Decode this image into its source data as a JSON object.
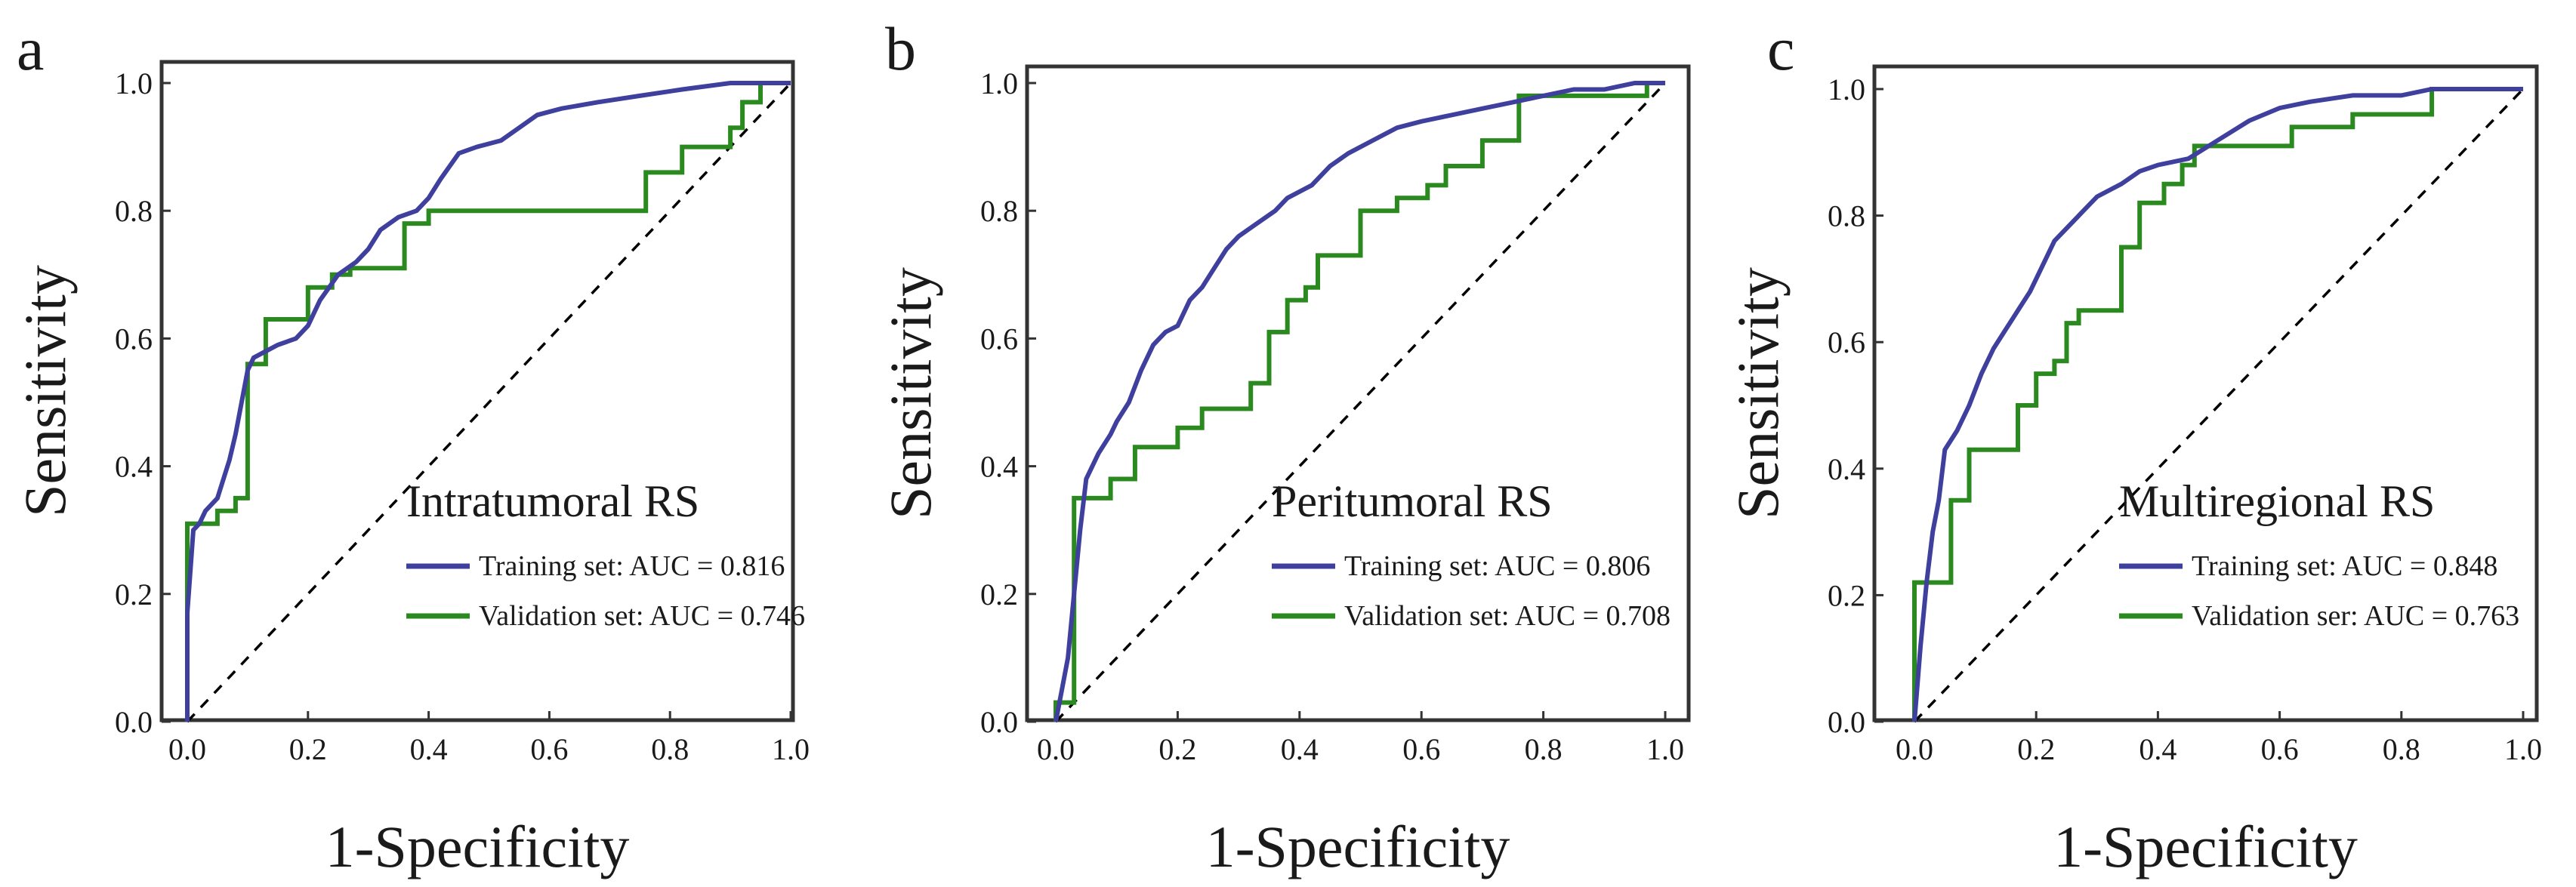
{
  "colors": {
    "training": "#3f3f9e",
    "validation": "#2b8a1f",
    "diagonal": "#000000",
    "frame": "#333333"
  },
  "chart_data": [
    {
      "panel_label": "a",
      "type": "line",
      "title": "Intratumoral RS",
      "xlabel": "1-Specificity",
      "ylabel": "Sensitivity",
      "xlim": [
        0,
        1
      ],
      "ylim": [
        0,
        1
      ],
      "x_ticks": [
        "0.0",
        "0.2",
        "0.4",
        "0.6",
        "0.8",
        "1.0"
      ],
      "y_ticks": [
        "0.0",
        "0.2",
        "0.4",
        "0.6",
        "0.8",
        "1.0"
      ],
      "grid": false,
      "legend_position": "bottom-right",
      "series": [
        {
          "name": "Training set: AUC = 0.816",
          "color_key": "training",
          "points": [
            [
              0,
              0
            ],
            [
              0,
              0.17
            ],
            [
              0.01,
              0.3
            ],
            [
              0.02,
              0.31
            ],
            [
              0.03,
              0.33
            ],
            [
              0.05,
              0.35
            ],
            [
              0.06,
              0.38
            ],
            [
              0.07,
              0.41
            ],
            [
              0.08,
              0.45
            ],
            [
              0.09,
              0.5
            ],
            [
              0.1,
              0.55
            ],
            [
              0.11,
              0.57
            ],
            [
              0.13,
              0.58
            ],
            [
              0.15,
              0.59
            ],
            [
              0.18,
              0.6
            ],
            [
              0.2,
              0.62
            ],
            [
              0.22,
              0.66
            ],
            [
              0.25,
              0.7
            ],
            [
              0.28,
              0.72
            ],
            [
              0.3,
              0.74
            ],
            [
              0.32,
              0.77
            ],
            [
              0.35,
              0.79
            ],
            [
              0.38,
              0.8
            ],
            [
              0.4,
              0.82
            ],
            [
              0.42,
              0.85
            ],
            [
              0.45,
              0.89
            ],
            [
              0.48,
              0.9
            ],
            [
              0.52,
              0.91
            ],
            [
              0.55,
              0.93
            ],
            [
              0.58,
              0.95
            ],
            [
              0.62,
              0.96
            ],
            [
              0.68,
              0.97
            ],
            [
              0.75,
              0.98
            ],
            [
              0.82,
              0.99
            ],
            [
              0.9,
              1.0
            ],
            [
              1.0,
              1.0
            ]
          ]
        },
        {
          "name": "Validation set: AUC = 0.746",
          "color_key": "validation",
          "points": [
            [
              0,
              0
            ],
            [
              0,
              0.31
            ],
            [
              0.05,
              0.31
            ],
            [
              0.05,
              0.33
            ],
            [
              0.08,
              0.33
            ],
            [
              0.08,
              0.35
            ],
            [
              0.1,
              0.35
            ],
            [
              0.1,
              0.56
            ],
            [
              0.13,
              0.56
            ],
            [
              0.13,
              0.63
            ],
            [
              0.2,
              0.63
            ],
            [
              0.2,
              0.68
            ],
            [
              0.24,
              0.68
            ],
            [
              0.24,
              0.7
            ],
            [
              0.27,
              0.7
            ],
            [
              0.27,
              0.71
            ],
            [
              0.36,
              0.71
            ],
            [
              0.36,
              0.78
            ],
            [
              0.4,
              0.78
            ],
            [
              0.4,
              0.8
            ],
            [
              0.76,
              0.8
            ],
            [
              0.76,
              0.86
            ],
            [
              0.82,
              0.86
            ],
            [
              0.82,
              0.9
            ],
            [
              0.9,
              0.9
            ],
            [
              0.9,
              0.93
            ],
            [
              0.92,
              0.93
            ],
            [
              0.92,
              0.97
            ],
            [
              0.95,
              0.97
            ],
            [
              0.95,
              1.0
            ],
            [
              1.0,
              1.0
            ]
          ]
        }
      ]
    },
    {
      "panel_label": "b",
      "type": "line",
      "title": "Peritumoral RS",
      "xlabel": "1-Specificity",
      "ylabel": "Sensitivity",
      "xlim": [
        0,
        1
      ],
      "ylim": [
        0,
        1
      ],
      "x_ticks": [
        "0.0",
        "0.2",
        "0.4",
        "0.6",
        "0.8",
        "1.0"
      ],
      "y_ticks": [
        "0.0",
        "0.2",
        "0.4",
        "0.6",
        "0.8",
        "1.0"
      ],
      "grid": false,
      "legend_position": "bottom-right",
      "series": [
        {
          "name": "Training set: AUC = 0.806",
          "color_key": "training",
          "points": [
            [
              0,
              0
            ],
            [
              0.01,
              0.05
            ],
            [
              0.02,
              0.1
            ],
            [
              0.03,
              0.2
            ],
            [
              0.04,
              0.3
            ],
            [
              0.05,
              0.38
            ],
            [
              0.07,
              0.42
            ],
            [
              0.09,
              0.45
            ],
            [
              0.1,
              0.47
            ],
            [
              0.12,
              0.5
            ],
            [
              0.14,
              0.55
            ],
            [
              0.16,
              0.59
            ],
            [
              0.18,
              0.61
            ],
            [
              0.2,
              0.62
            ],
            [
              0.22,
              0.66
            ],
            [
              0.24,
              0.68
            ],
            [
              0.26,
              0.71
            ],
            [
              0.28,
              0.74
            ],
            [
              0.3,
              0.76
            ],
            [
              0.33,
              0.78
            ],
            [
              0.36,
              0.8
            ],
            [
              0.38,
              0.82
            ],
            [
              0.42,
              0.84
            ],
            [
              0.45,
              0.87
            ],
            [
              0.48,
              0.89
            ],
            [
              0.52,
              0.91
            ],
            [
              0.56,
              0.93
            ],
            [
              0.6,
              0.94
            ],
            [
              0.65,
              0.95
            ],
            [
              0.7,
              0.96
            ],
            [
              0.75,
              0.97
            ],
            [
              0.8,
              0.98
            ],
            [
              0.85,
              0.99
            ],
            [
              0.9,
              0.99
            ],
            [
              0.95,
              1.0
            ],
            [
              1.0,
              1.0
            ]
          ]
        },
        {
          "name": "Validation set: AUC = 0.708",
          "color_key": "validation",
          "points": [
            [
              0,
              0
            ],
            [
              0,
              0.03
            ],
            [
              0.03,
              0.03
            ],
            [
              0.03,
              0.35
            ],
            [
              0.09,
              0.35
            ],
            [
              0.09,
              0.38
            ],
            [
              0.13,
              0.38
            ],
            [
              0.13,
              0.43
            ],
            [
              0.2,
              0.43
            ],
            [
              0.2,
              0.46
            ],
            [
              0.24,
              0.46
            ],
            [
              0.24,
              0.49
            ],
            [
              0.32,
              0.49
            ],
            [
              0.32,
              0.53
            ],
            [
              0.35,
              0.53
            ],
            [
              0.35,
              0.61
            ],
            [
              0.38,
              0.61
            ],
            [
              0.38,
              0.66
            ],
            [
              0.41,
              0.66
            ],
            [
              0.41,
              0.68
            ],
            [
              0.43,
              0.68
            ],
            [
              0.43,
              0.73
            ],
            [
              0.5,
              0.73
            ],
            [
              0.5,
              0.8
            ],
            [
              0.56,
              0.8
            ],
            [
              0.56,
              0.82
            ],
            [
              0.61,
              0.82
            ],
            [
              0.61,
              0.84
            ],
            [
              0.64,
              0.84
            ],
            [
              0.64,
              0.87
            ],
            [
              0.7,
              0.87
            ],
            [
              0.7,
              0.91
            ],
            [
              0.76,
              0.91
            ],
            [
              0.76,
              0.98
            ],
            [
              0.97,
              0.98
            ],
            [
              0.97,
              1.0
            ],
            [
              1.0,
              1.0
            ]
          ]
        }
      ]
    },
    {
      "panel_label": "c",
      "type": "line",
      "title": "Multiregional RS",
      "xlabel": "1-Specificity",
      "ylabel": "Sensitivity",
      "xlim": [
        0,
        1
      ],
      "ylim": [
        0,
        1
      ],
      "x_ticks": [
        "0.0",
        "0.2",
        "0.4",
        "0.6",
        "0.8",
        "1.0"
      ],
      "y_ticks": [
        "0.0",
        "0.2",
        "0.4",
        "0.6",
        "0.8",
        "1.0"
      ],
      "grid": false,
      "legend_position": "bottom-right",
      "series": [
        {
          "name": "Training set: AUC = 0.848",
          "color_key": "training",
          "points": [
            [
              0,
              0
            ],
            [
              0.01,
              0.12
            ],
            [
              0.02,
              0.22
            ],
            [
              0.03,
              0.3
            ],
            [
              0.04,
              0.35
            ],
            [
              0.05,
              0.43
            ],
            [
              0.07,
              0.46
            ],
            [
              0.09,
              0.5
            ],
            [
              0.11,
              0.55
            ],
            [
              0.13,
              0.59
            ],
            [
              0.15,
              0.62
            ],
            [
              0.17,
              0.65
            ],
            [
              0.19,
              0.68
            ],
            [
              0.21,
              0.72
            ],
            [
              0.23,
              0.76
            ],
            [
              0.26,
              0.79
            ],
            [
              0.28,
              0.81
            ],
            [
              0.3,
              0.83
            ],
            [
              0.34,
              0.85
            ],
            [
              0.37,
              0.87
            ],
            [
              0.4,
              0.88
            ],
            [
              0.45,
              0.89
            ],
            [
              0.5,
              0.92
            ],
            [
              0.55,
              0.95
            ],
            [
              0.6,
              0.97
            ],
            [
              0.65,
              0.98
            ],
            [
              0.72,
              0.99
            ],
            [
              0.8,
              0.99
            ],
            [
              0.85,
              1.0
            ],
            [
              1.0,
              1.0
            ]
          ]
        },
        {
          "name": "Validation ser: AUC = 0.763",
          "color_key": "validation",
          "points": [
            [
              0,
              0
            ],
            [
              0,
              0.22
            ],
            [
              0.06,
              0.22
            ],
            [
              0.06,
              0.35
            ],
            [
              0.09,
              0.35
            ],
            [
              0.09,
              0.43
            ],
            [
              0.17,
              0.43
            ],
            [
              0.17,
              0.5
            ],
            [
              0.2,
              0.5
            ],
            [
              0.2,
              0.55
            ],
            [
              0.23,
              0.55
            ],
            [
              0.23,
              0.57
            ],
            [
              0.25,
              0.57
            ],
            [
              0.25,
              0.63
            ],
            [
              0.27,
              0.63
            ],
            [
              0.27,
              0.65
            ],
            [
              0.34,
              0.65
            ],
            [
              0.34,
              0.75
            ],
            [
              0.37,
              0.75
            ],
            [
              0.37,
              0.82
            ],
            [
              0.41,
              0.82
            ],
            [
              0.41,
              0.85
            ],
            [
              0.44,
              0.85
            ],
            [
              0.44,
              0.88
            ],
            [
              0.46,
              0.88
            ],
            [
              0.46,
              0.91
            ],
            [
              0.62,
              0.91
            ],
            [
              0.62,
              0.94
            ],
            [
              0.72,
              0.94
            ],
            [
              0.72,
              0.96
            ],
            [
              0.85,
              0.96
            ],
            [
              0.85,
              1.0
            ],
            [
              1.0,
              1.0
            ]
          ]
        }
      ]
    }
  ]
}
